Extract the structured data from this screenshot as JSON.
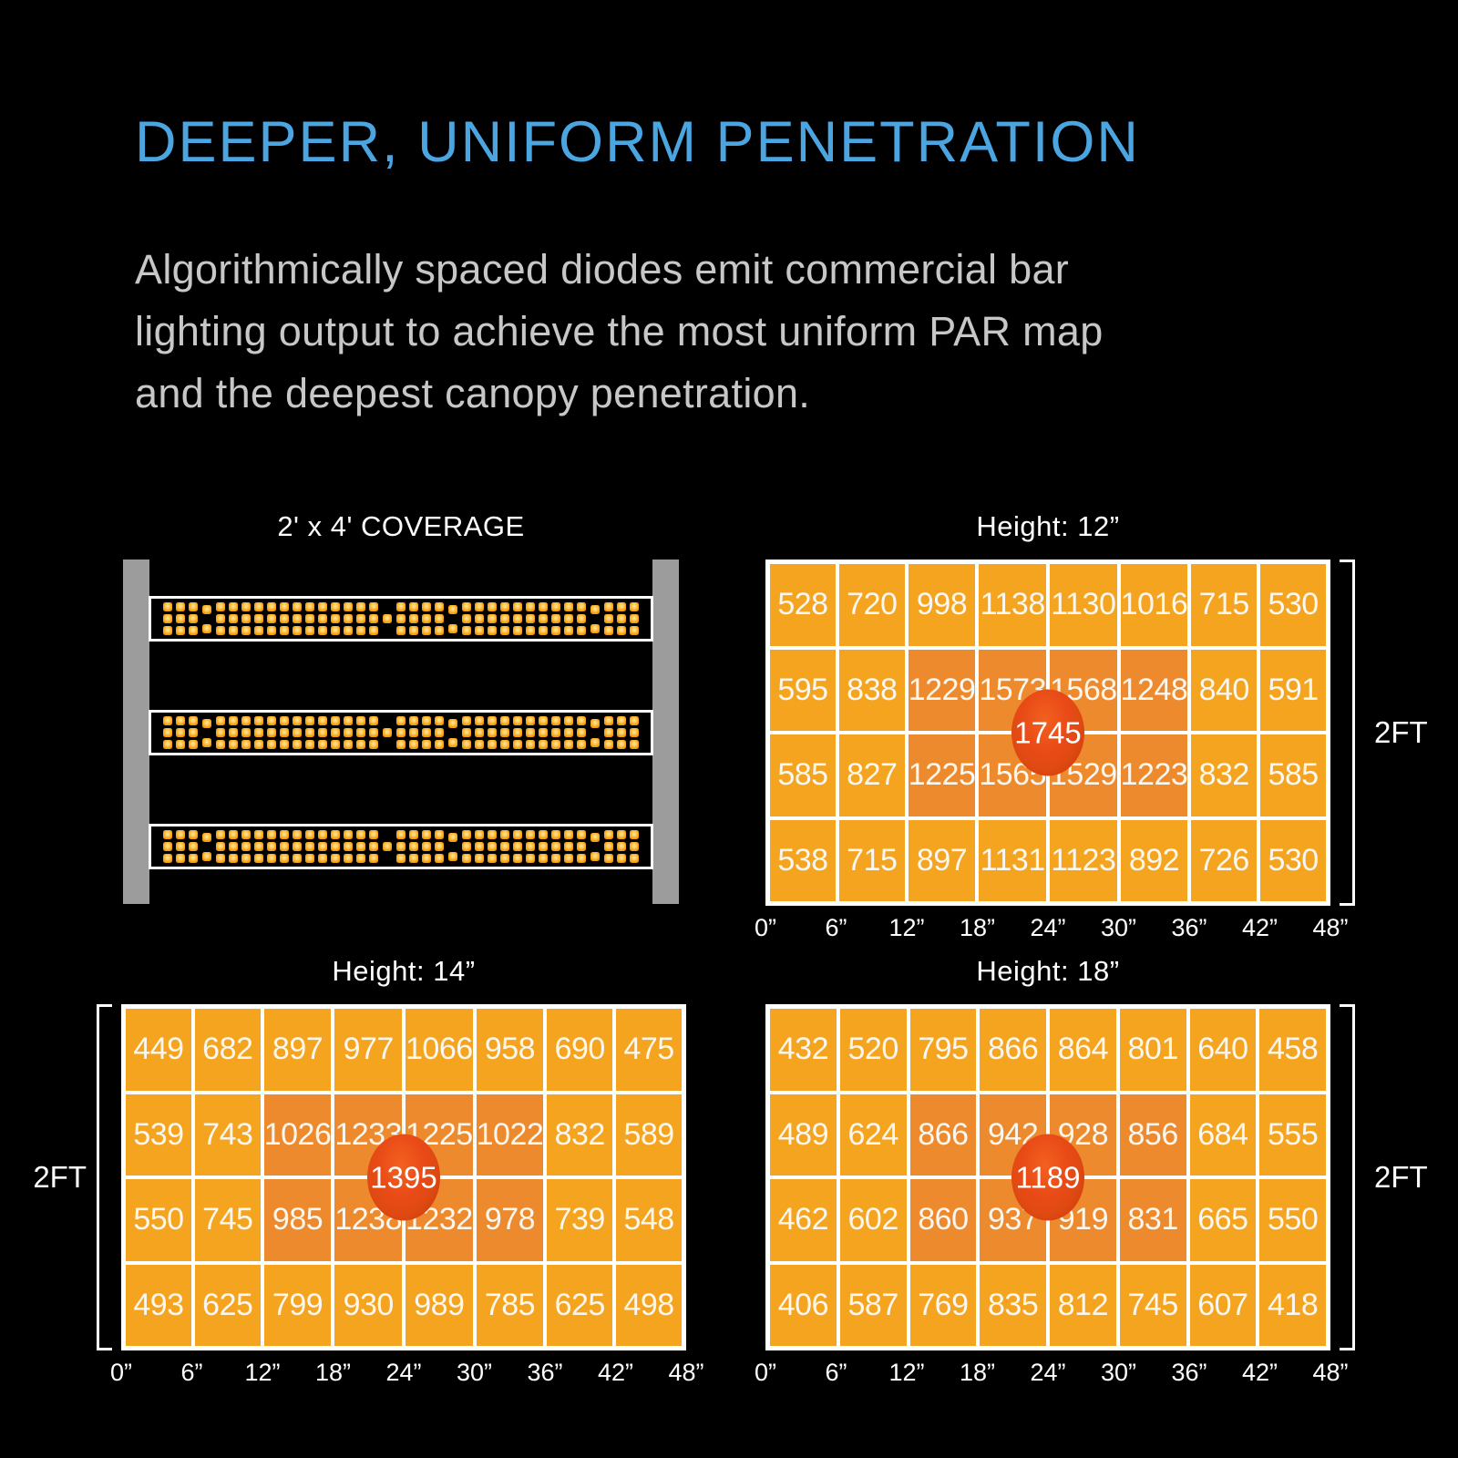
{
  "header": {
    "title": "DEEPER, UNIFORM PENETRATION",
    "subtitle_lines": [
      "Algorithmically spaced diodes emit commercial bar",
      "lighting output to achieve the most uniform PAR map",
      "and the deepest canopy penetration."
    ]
  },
  "coverage": {
    "title": "2' x 4' COVERAGE",
    "bar_count": 3
  },
  "colors": {
    "accent_blue": "#4BA5E0",
    "body_gray": "#C7C7C7",
    "cell_orange": "#F4A41F",
    "hot_orange": "#EE8A2E",
    "peak_red": "#E04A12",
    "rail_gray": "#9C9C9C",
    "led_amber": "#F5A114"
  },
  "chart_data": [
    {
      "type": "heatmap",
      "title": "Height: 12”",
      "x_ticks": [
        "0”",
        "6”",
        "12”",
        "18”",
        "24”",
        "30”",
        "36”",
        "42”",
        "48”"
      ],
      "y_extent_label": "2FT",
      "bracket_side": "right",
      "values": [
        [
          528,
          720,
          998,
          1138,
          1130,
          1016,
          715,
          530
        ],
        [
          595,
          838,
          1229,
          1573,
          1568,
          1248,
          840,
          591
        ],
        [
          585,
          827,
          1225,
          1565,
          1529,
          1223,
          832,
          585
        ],
        [
          538,
          715,
          897,
          1131,
          1123,
          892,
          726,
          530
        ]
      ],
      "hot_rows": [
        1,
        2
      ],
      "hot_cols": [
        2,
        3,
        4,
        5
      ],
      "peak_center_value": 1745
    },
    {
      "type": "heatmap",
      "title": "Height: 14”",
      "x_ticks": [
        "0”",
        "6”",
        "12”",
        "18”",
        "24”",
        "30”",
        "36”",
        "42”",
        "48”"
      ],
      "y_extent_label": "2FT",
      "bracket_side": "left",
      "values": [
        [
          449,
          682,
          897,
          977,
          1066,
          958,
          690,
          475
        ],
        [
          539,
          743,
          1026,
          1233,
          1225,
          1022,
          832,
          589
        ],
        [
          550,
          745,
          985,
          1238,
          1232,
          978,
          739,
          548
        ],
        [
          493,
          625,
          799,
          930,
          989,
          785,
          625,
          498
        ]
      ],
      "hot_rows": [
        1,
        2
      ],
      "hot_cols": [
        2,
        3,
        4,
        5
      ],
      "peak_center_value": 1395
    },
    {
      "type": "heatmap",
      "title": "Height: 18”",
      "x_ticks": [
        "0”",
        "6”",
        "12”",
        "18”",
        "24”",
        "30”",
        "36”",
        "42”",
        "48”"
      ],
      "y_extent_label": "2FT",
      "bracket_side": "right",
      "values": [
        [
          432,
          520,
          795,
          866,
          864,
          801,
          640,
          458
        ],
        [
          489,
          624,
          866,
          942,
          928,
          856,
          684,
          555
        ],
        [
          462,
          602,
          860,
          937,
          919,
          831,
          665,
          550
        ],
        [
          406,
          587,
          769,
          835,
          812,
          745,
          607,
          418
        ]
      ],
      "hot_rows": [
        1,
        2
      ],
      "hot_cols": [
        2,
        3,
        4,
        5
      ],
      "peak_center_value": 1189
    }
  ]
}
